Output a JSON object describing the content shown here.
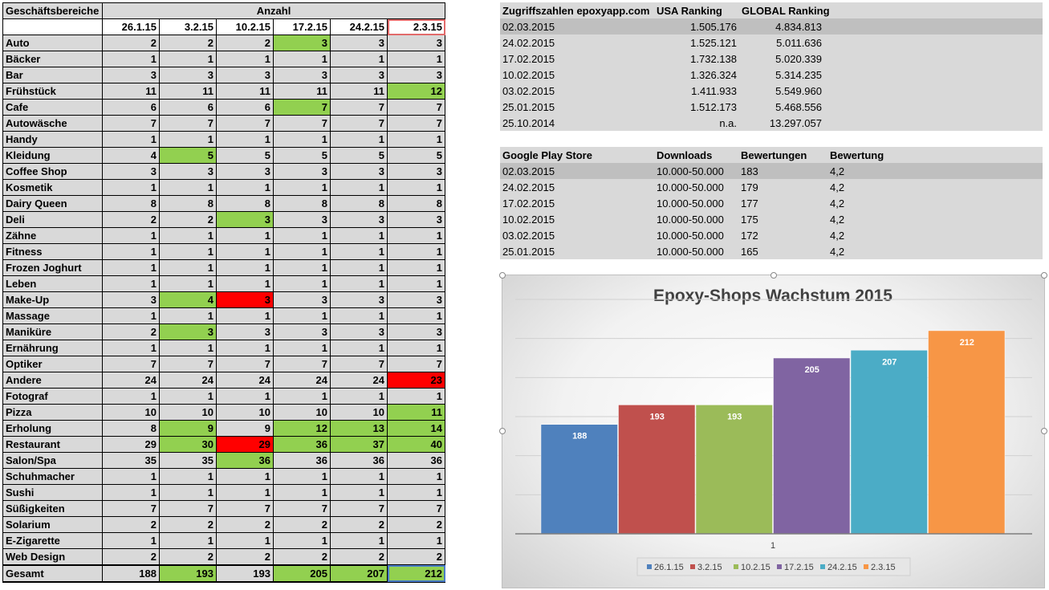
{
  "left_table": {
    "corner_label": "Geschäftsbereiche",
    "group_label": "Anzahl",
    "dates": [
      "26.1.15",
      "3.2.15",
      "10.2.15",
      "17.2.15",
      "24.2.15",
      "2.3.15"
    ],
    "rows": [
      {
        "name": "Auto",
        "values": [
          2,
          2,
          2,
          3,
          3,
          3
        ],
        "marks": [
          "",
          "",
          "",
          "g",
          "",
          ""
        ]
      },
      {
        "name": "Bäcker",
        "values": [
          1,
          1,
          1,
          1,
          1,
          1
        ],
        "marks": [
          "",
          "",
          "",
          "",
          "",
          ""
        ]
      },
      {
        "name": "Bar",
        "values": [
          3,
          3,
          3,
          3,
          3,
          3
        ],
        "marks": [
          "",
          "",
          "",
          "",
          "",
          ""
        ]
      },
      {
        "name": "Frühstück",
        "values": [
          11,
          11,
          11,
          11,
          11,
          12
        ],
        "marks": [
          "",
          "",
          "",
          "",
          "",
          "g"
        ]
      },
      {
        "name": "Cafe",
        "values": [
          6,
          6,
          6,
          7,
          7,
          7
        ],
        "marks": [
          "",
          "",
          "",
          "g",
          "",
          ""
        ]
      },
      {
        "name": "Autowäsche",
        "values": [
          7,
          7,
          7,
          7,
          7,
          7
        ],
        "marks": [
          "",
          "",
          "",
          "",
          "",
          ""
        ]
      },
      {
        "name": "Handy",
        "values": [
          1,
          1,
          1,
          1,
          1,
          1
        ],
        "marks": [
          "",
          "",
          "",
          "",
          "",
          ""
        ]
      },
      {
        "name": "Kleidung",
        "values": [
          4,
          5,
          5,
          5,
          5,
          5
        ],
        "marks": [
          "",
          "g",
          "",
          "",
          "",
          ""
        ]
      },
      {
        "name": "Coffee Shop",
        "values": [
          3,
          3,
          3,
          3,
          3,
          3
        ],
        "marks": [
          "",
          "",
          "",
          "",
          "",
          ""
        ]
      },
      {
        "name": "Kosmetik",
        "values": [
          1,
          1,
          1,
          1,
          1,
          1
        ],
        "marks": [
          "",
          "",
          "",
          "",
          "",
          ""
        ]
      },
      {
        "name": "Dairy Queen",
        "values": [
          8,
          8,
          8,
          8,
          8,
          8
        ],
        "marks": [
          "",
          "",
          "",
          "",
          "",
          ""
        ]
      },
      {
        "name": "Deli",
        "values": [
          2,
          2,
          3,
          3,
          3,
          3
        ],
        "marks": [
          "",
          "",
          "g",
          "",
          "",
          ""
        ]
      },
      {
        "name": "Zähne",
        "values": [
          1,
          1,
          1,
          1,
          1,
          1
        ],
        "marks": [
          "",
          "",
          "",
          "",
          "",
          ""
        ]
      },
      {
        "name": "Fitness",
        "values": [
          1,
          1,
          1,
          1,
          1,
          1
        ],
        "marks": [
          "",
          "",
          "",
          "",
          "",
          ""
        ]
      },
      {
        "name": "Frozen Joghurt",
        "values": [
          1,
          1,
          1,
          1,
          1,
          1
        ],
        "marks": [
          "",
          "",
          "",
          "",
          "",
          ""
        ]
      },
      {
        "name": "Leben",
        "values": [
          1,
          1,
          1,
          1,
          1,
          1
        ],
        "marks": [
          "",
          "",
          "",
          "",
          "",
          ""
        ]
      },
      {
        "name": "Make-Up",
        "values": [
          3,
          4,
          3,
          3,
          3,
          3
        ],
        "marks": [
          "",
          "g",
          "r",
          "",
          "",
          ""
        ]
      },
      {
        "name": "Massage",
        "values": [
          1,
          1,
          1,
          1,
          1,
          1
        ],
        "marks": [
          "",
          "",
          "",
          "",
          "",
          ""
        ]
      },
      {
        "name": "Maniküre",
        "values": [
          2,
          3,
          3,
          3,
          3,
          3
        ],
        "marks": [
          "",
          "g",
          "",
          "",
          "",
          ""
        ]
      },
      {
        "name": "Ernährung",
        "values": [
          1,
          1,
          1,
          1,
          1,
          1
        ],
        "marks": [
          "",
          "",
          "",
          "",
          "",
          ""
        ]
      },
      {
        "name": "Optiker",
        "values": [
          7,
          7,
          7,
          7,
          7,
          7
        ],
        "marks": [
          "",
          "",
          "",
          "",
          "",
          ""
        ]
      },
      {
        "name": "Andere",
        "values": [
          24,
          24,
          24,
          24,
          24,
          23
        ],
        "marks": [
          "",
          "",
          "",
          "",
          "",
          "r"
        ]
      },
      {
        "name": "Fotograf",
        "values": [
          1,
          1,
          1,
          1,
          1,
          1
        ],
        "marks": [
          "",
          "",
          "",
          "",
          "",
          ""
        ]
      },
      {
        "name": "Pizza",
        "values": [
          10,
          10,
          10,
          10,
          10,
          11
        ],
        "marks": [
          "",
          "",
          "",
          "",
          "",
          "g"
        ]
      },
      {
        "name": "Erholung",
        "values": [
          8,
          9,
          9,
          12,
          13,
          14
        ],
        "marks": [
          "",
          "g",
          "",
          "g",
          "g",
          "g"
        ]
      },
      {
        "name": "Restaurant",
        "values": [
          29,
          30,
          29,
          36,
          37,
          40
        ],
        "marks": [
          "",
          "g",
          "r",
          "g",
          "g",
          "g"
        ]
      },
      {
        "name": "Salon/Spa",
        "values": [
          35,
          35,
          36,
          36,
          36,
          36
        ],
        "marks": [
          "",
          "",
          "g",
          "",
          "",
          ""
        ]
      },
      {
        "name": "Schuhmacher",
        "values": [
          1,
          1,
          1,
          1,
          1,
          1
        ],
        "marks": [
          "",
          "",
          "",
          "",
          "",
          ""
        ]
      },
      {
        "name": "Sushi",
        "values": [
          1,
          1,
          1,
          1,
          1,
          1
        ],
        "marks": [
          "",
          "",
          "",
          "",
          "",
          ""
        ]
      },
      {
        "name": "Süßigkeiten",
        "values": [
          7,
          7,
          7,
          7,
          7,
          7
        ],
        "marks": [
          "",
          "",
          "",
          "",
          "",
          ""
        ]
      },
      {
        "name": "Solarium",
        "values": [
          2,
          2,
          2,
          2,
          2,
          2
        ],
        "marks": [
          "",
          "",
          "",
          "",
          "",
          ""
        ]
      },
      {
        "name": "E-Zigarette",
        "values": [
          1,
          1,
          1,
          1,
          1,
          1
        ],
        "marks": [
          "",
          "",
          "",
          "",
          "",
          ""
        ]
      },
      {
        "name": "Web Design",
        "values": [
          2,
          2,
          2,
          2,
          2,
          2
        ],
        "marks": [
          "",
          "",
          "",
          "",
          "",
          ""
        ]
      }
    ],
    "total": {
      "name": "Gesamt",
      "values": [
        188,
        193,
        193,
        205,
        207,
        212
      ],
      "marks": [
        "",
        "g",
        "",
        "g",
        "g",
        "g"
      ]
    }
  },
  "ranking_table": {
    "headers": [
      "Zugriffszahlen epoxyapp.com",
      "USA Ranking",
      "GLOBAL Ranking"
    ],
    "rows": [
      [
        "02.03.2015",
        "1.505.176",
        "4.834.813"
      ],
      [
        "24.02.2015",
        "1.525.121",
        "5.011.636"
      ],
      [
        "17.02.2015",
        "1.732.138",
        "5.020.339"
      ],
      [
        "10.02.2015",
        "1.326.324",
        "5.314.235"
      ],
      [
        "03.02.2015",
        "1.411.933",
        "5.549.960"
      ],
      [
        "25.01.2015",
        "1.512.173",
        "5.468.556"
      ],
      [
        "25.10.2014",
        "n.a.",
        "13.297.057"
      ]
    ]
  },
  "play_table": {
    "headers": [
      "Google Play Store",
      "Downloads",
      "Bewertungen",
      "Bewertung"
    ],
    "rows": [
      [
        "02.03.2015",
        "10.000-50.000",
        "183",
        "4,2"
      ],
      [
        "24.02.2015",
        "10.000-50.000",
        "179",
        "4,2"
      ],
      [
        "17.02.2015",
        "10.000-50.000",
        "177",
        "4,2"
      ],
      [
        "10.02.2015",
        "10.000-50.000",
        "175",
        "4,2"
      ],
      [
        "03.02.2015",
        "10.000-50.000",
        "172",
        "4,2"
      ],
      [
        "25.01.2015",
        "10.000-50.000",
        "165",
        "4,2"
      ]
    ]
  },
  "chart_data": {
    "type": "bar",
    "title": "Epoxy-Shops Wachstum 2015",
    "categories": [
      "1"
    ],
    "series": [
      {
        "name": "26.1.15",
        "values": [
          188
        ],
        "color": "#4f81bd"
      },
      {
        "name": "3.2.15",
        "values": [
          193
        ],
        "color": "#c0504d"
      },
      {
        "name": "10.2.15",
        "values": [
          193
        ],
        "color": "#9bbb59"
      },
      {
        "name": "17.2.15",
        "values": [
          205
        ],
        "color": "#8064a2"
      },
      {
        "name": "24.2.15",
        "values": [
          207
        ],
        "color": "#4bacc6"
      },
      {
        "name": "2.3.15",
        "values": [
          212
        ],
        "color": "#f79646"
      }
    ],
    "ylim": [
      160,
      220
    ],
    "grid": true,
    "legend": "bottom",
    "xlabel": "",
    "ylabel": ""
  },
  "colors": {
    "green": "#92d050",
    "red": "#ff0000",
    "gray": "#d9d9d9"
  }
}
